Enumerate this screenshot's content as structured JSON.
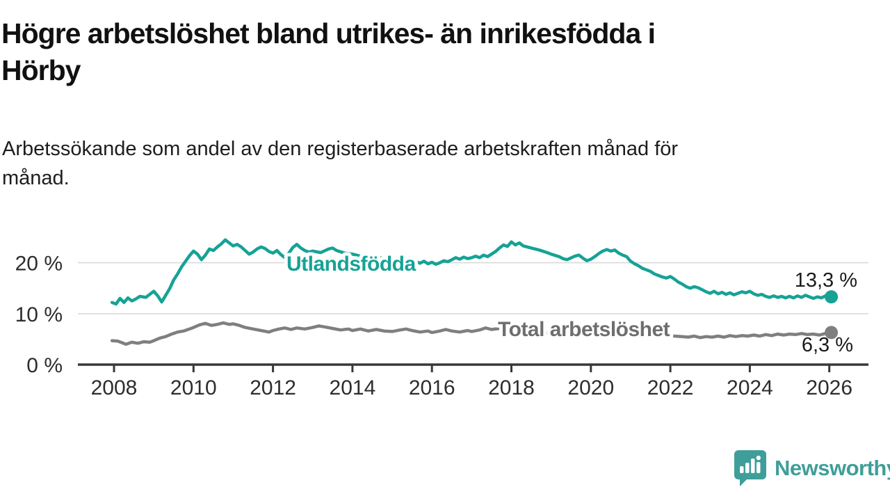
{
  "header": {
    "title_lines": [
      "Högre arbetslöshet bland utrikes- än inrikesfödda i",
      "Hörby"
    ],
    "subtitle_lines": [
      "Arbetssökande som andel av den registerbaserade arbetskraften månad för",
      "månad."
    ]
  },
  "footer": {
    "brand": "Newsworthy",
    "brand_color": "#3f9e99"
  },
  "chart_data": {
    "type": "line",
    "title": "Högre arbetslöshet bland utrikes- än inrikesfödda i Hörby",
    "subtitle": "Arbetssökande som andel av den registerbaserade arbetskraften månad för månad.",
    "xlabel": "",
    "ylabel": "",
    "xlim": [
      2007.9,
      2027.0
    ],
    "ylim": [
      0,
      27
    ],
    "grid": "horizontal",
    "legend_position": "inline-labels",
    "x_ticks": [
      2008,
      2010,
      2012,
      2014,
      2016,
      2018,
      2020,
      2022,
      2024,
      2026
    ],
    "y_ticks": [
      {
        "value": 0,
        "label": "0 %"
      },
      {
        "value": 10,
        "label": "10 %"
      },
      {
        "value": 20,
        "label": "20 %"
      }
    ],
    "colors": {
      "axis": "#383838",
      "grid": "#d9d9d9",
      "tick_text": "#2d2d2d"
    },
    "series": [
      {
        "name": "Utlandsfödda",
        "color": "#17a296",
        "end_label": "13,3 %",
        "end_value": 13.3,
        "points": [
          [
            2007.95,
            12.2
          ],
          [
            2008.05,
            11.9
          ],
          [
            2008.15,
            13.0
          ],
          [
            2008.25,
            12.2
          ],
          [
            2008.35,
            13.1
          ],
          [
            2008.45,
            12.5
          ],
          [
            2008.55,
            12.9
          ],
          [
            2008.65,
            13.4
          ],
          [
            2008.8,
            13.2
          ],
          [
            2008.9,
            13.8
          ],
          [
            2009.0,
            14.4
          ],
          [
            2009.1,
            13.5
          ],
          [
            2009.2,
            12.3
          ],
          [
            2009.3,
            13.6
          ],
          [
            2009.4,
            14.9
          ],
          [
            2009.5,
            16.6
          ],
          [
            2009.6,
            17.8
          ],
          [
            2009.7,
            19.2
          ],
          [
            2009.8,
            20.3
          ],
          [
            2009.9,
            21.4
          ],
          [
            2010.0,
            22.3
          ],
          [
            2010.1,
            21.7
          ],
          [
            2010.2,
            20.6
          ],
          [
            2010.3,
            21.5
          ],
          [
            2010.4,
            22.7
          ],
          [
            2010.5,
            22.4
          ],
          [
            2010.6,
            23.1
          ],
          [
            2010.7,
            23.7
          ],
          [
            2010.8,
            24.5
          ],
          [
            2010.9,
            23.9
          ],
          [
            2011.0,
            23.3
          ],
          [
            2011.1,
            23.6
          ],
          [
            2011.2,
            23.1
          ],
          [
            2011.3,
            22.4
          ],
          [
            2011.4,
            21.7
          ],
          [
            2011.5,
            22.1
          ],
          [
            2011.6,
            22.7
          ],
          [
            2011.7,
            23.1
          ],
          [
            2011.8,
            22.8
          ],
          [
            2011.9,
            22.2
          ],
          [
            2012.0,
            21.9
          ],
          [
            2012.1,
            22.4
          ],
          [
            2012.2,
            21.6
          ],
          [
            2012.3,
            21.0
          ],
          [
            2012.4,
            21.9
          ],
          [
            2012.5,
            23.0
          ],
          [
            2012.6,
            23.6
          ],
          [
            2012.7,
            22.9
          ],
          [
            2012.8,
            22.4
          ],
          [
            2012.9,
            22.1
          ],
          [
            2013.0,
            22.3
          ],
          [
            2013.2,
            22.0
          ],
          [
            2013.4,
            22.7
          ],
          [
            2013.5,
            22.9
          ],
          [
            2013.6,
            22.4
          ],
          [
            2013.8,
            21.9
          ],
          [
            2014.0,
            21.7
          ],
          [
            2014.2,
            21.3
          ],
          [
            2014.4,
            21.6
          ],
          [
            2014.6,
            21.1
          ],
          [
            2014.8,
            20.8
          ],
          [
            2015.0,
            20.6
          ],
          [
            2015.2,
            20.4
          ],
          [
            2015.4,
            20.7
          ],
          [
            2015.6,
            20.2
          ],
          [
            2015.7,
            19.9
          ],
          [
            2015.8,
            20.3
          ],
          [
            2015.9,
            19.8
          ],
          [
            2016.0,
            20.1
          ],
          [
            2016.1,
            19.7
          ],
          [
            2016.2,
            20.0
          ],
          [
            2016.3,
            20.4
          ],
          [
            2016.4,
            20.2
          ],
          [
            2016.5,
            20.6
          ],
          [
            2016.6,
            21.0
          ],
          [
            2016.7,
            20.7
          ],
          [
            2016.8,
            21.1
          ],
          [
            2016.9,
            20.8
          ],
          [
            2017.0,
            21.0
          ],
          [
            2017.1,
            21.3
          ],
          [
            2017.2,
            21.0
          ],
          [
            2017.3,
            21.5
          ],
          [
            2017.4,
            21.2
          ],
          [
            2017.5,
            21.7
          ],
          [
            2017.6,
            22.2
          ],
          [
            2017.7,
            22.9
          ],
          [
            2017.8,
            23.5
          ],
          [
            2017.9,
            23.2
          ],
          [
            2018.0,
            24.1
          ],
          [
            2018.1,
            23.5
          ],
          [
            2018.2,
            23.9
          ],
          [
            2018.3,
            23.3
          ],
          [
            2018.5,
            22.9
          ],
          [
            2018.7,
            22.5
          ],
          [
            2018.9,
            22.0
          ],
          [
            2019.0,
            21.7
          ],
          [
            2019.2,
            21.2
          ],
          [
            2019.3,
            20.8
          ],
          [
            2019.4,
            20.6
          ],
          [
            2019.6,
            21.3
          ],
          [
            2019.7,
            21.5
          ],
          [
            2019.8,
            20.9
          ],
          [
            2019.9,
            20.4
          ],
          [
            2020.0,
            20.7
          ],
          [
            2020.1,
            21.2
          ],
          [
            2020.2,
            21.8
          ],
          [
            2020.3,
            22.3
          ],
          [
            2020.4,
            22.6
          ],
          [
            2020.5,
            22.3
          ],
          [
            2020.6,
            22.5
          ],
          [
            2020.7,
            21.9
          ],
          [
            2020.8,
            21.5
          ],
          [
            2020.9,
            21.2
          ],
          [
            2021.0,
            20.3
          ],
          [
            2021.1,
            19.8
          ],
          [
            2021.2,
            19.4
          ],
          [
            2021.3,
            18.9
          ],
          [
            2021.4,
            18.6
          ],
          [
            2021.5,
            18.3
          ],
          [
            2021.6,
            17.8
          ],
          [
            2021.7,
            17.5
          ],
          [
            2021.8,
            17.2
          ],
          [
            2021.9,
            17.0
          ],
          [
            2022.0,
            17.3
          ],
          [
            2022.1,
            16.8
          ],
          [
            2022.2,
            16.2
          ],
          [
            2022.3,
            15.8
          ],
          [
            2022.4,
            15.3
          ],
          [
            2022.5,
            15.0
          ],
          [
            2022.6,
            15.3
          ],
          [
            2022.7,
            15.1
          ],
          [
            2022.8,
            14.7
          ],
          [
            2022.9,
            14.3
          ],
          [
            2023.0,
            14.0
          ],
          [
            2023.1,
            14.4
          ],
          [
            2023.2,
            13.9
          ],
          [
            2023.3,
            14.2
          ],
          [
            2023.4,
            13.8
          ],
          [
            2023.5,
            14.1
          ],
          [
            2023.6,
            13.7
          ],
          [
            2023.7,
            14.0
          ],
          [
            2023.8,
            14.3
          ],
          [
            2023.9,
            14.1
          ],
          [
            2024.0,
            14.4
          ],
          [
            2024.1,
            13.9
          ],
          [
            2024.2,
            13.6
          ],
          [
            2024.3,
            13.8
          ],
          [
            2024.4,
            13.4
          ],
          [
            2024.5,
            13.2
          ],
          [
            2024.6,
            13.5
          ],
          [
            2024.7,
            13.2
          ],
          [
            2024.8,
            13.4
          ],
          [
            2024.9,
            13.1
          ],
          [
            2025.0,
            13.4
          ],
          [
            2025.1,
            13.1
          ],
          [
            2025.2,
            13.5
          ],
          [
            2025.3,
            13.2
          ],
          [
            2025.4,
            13.6
          ],
          [
            2025.5,
            13.3
          ],
          [
            2025.6,
            13.0
          ],
          [
            2025.7,
            13.3
          ],
          [
            2025.8,
            13.1
          ],
          [
            2025.9,
            13.5
          ],
          [
            2026.05,
            13.3
          ]
        ]
      },
      {
        "name": "Total arbetslöshet",
        "color": "#7f7f7f",
        "label_color": "#6e6e6e",
        "end_label": "6,3 %",
        "end_value": 6.3,
        "points": [
          [
            2007.95,
            4.7
          ],
          [
            2008.1,
            4.6
          ],
          [
            2008.2,
            4.3
          ],
          [
            2008.3,
            4.0
          ],
          [
            2008.45,
            4.4
          ],
          [
            2008.6,
            4.2
          ],
          [
            2008.75,
            4.5
          ],
          [
            2008.9,
            4.4
          ],
          [
            2009.0,
            4.7
          ],
          [
            2009.15,
            5.2
          ],
          [
            2009.3,
            5.5
          ],
          [
            2009.45,
            6.0
          ],
          [
            2009.6,
            6.4
          ],
          [
            2009.75,
            6.6
          ],
          [
            2009.9,
            7.0
          ],
          [
            2010.0,
            7.3
          ],
          [
            2010.15,
            7.8
          ],
          [
            2010.3,
            8.1
          ],
          [
            2010.45,
            7.7
          ],
          [
            2010.6,
            7.9
          ],
          [
            2010.75,
            8.2
          ],
          [
            2010.9,
            7.9
          ],
          [
            2011.0,
            8.0
          ],
          [
            2011.15,
            7.7
          ],
          [
            2011.3,
            7.3
          ],
          [
            2011.5,
            7.0
          ],
          [
            2011.7,
            6.7
          ],
          [
            2011.9,
            6.4
          ],
          [
            2012.0,
            6.7
          ],
          [
            2012.15,
            7.0
          ],
          [
            2012.3,
            7.2
          ],
          [
            2012.45,
            6.9
          ],
          [
            2012.6,
            7.2
          ],
          [
            2012.8,
            7.0
          ],
          [
            2013.0,
            7.3
          ],
          [
            2013.15,
            7.6
          ],
          [
            2013.3,
            7.4
          ],
          [
            2013.5,
            7.1
          ],
          [
            2013.7,
            6.8
          ],
          [
            2013.9,
            7.0
          ],
          [
            2014.0,
            6.7
          ],
          [
            2014.2,
            7.0
          ],
          [
            2014.4,
            6.6
          ],
          [
            2014.6,
            6.9
          ],
          [
            2014.8,
            6.6
          ],
          [
            2015.0,
            6.5
          ],
          [
            2015.2,
            6.8
          ],
          [
            2015.35,
            7.0
          ],
          [
            2015.5,
            6.7
          ],
          [
            2015.7,
            6.4
          ],
          [
            2015.9,
            6.6
          ],
          [
            2016.0,
            6.3
          ],
          [
            2016.2,
            6.6
          ],
          [
            2016.35,
            6.9
          ],
          [
            2016.5,
            6.6
          ],
          [
            2016.7,
            6.4
          ],
          [
            2016.9,
            6.7
          ],
          [
            2017.0,
            6.5
          ],
          [
            2017.2,
            6.8
          ],
          [
            2017.35,
            7.2
          ],
          [
            2017.5,
            6.9
          ],
          [
            2017.7,
            7.1
          ],
          [
            2017.9,
            6.8
          ],
          [
            2018.2,
            6.6
          ],
          [
            2018.5,
            6.4
          ],
          [
            2018.8,
            6.2
          ],
          [
            2019.1,
            6.1
          ],
          [
            2019.4,
            6.2
          ],
          [
            2019.7,
            6.0
          ],
          [
            2020.0,
            6.4
          ],
          [
            2020.3,
            7.1
          ],
          [
            2020.6,
            7.3
          ],
          [
            2020.9,
            7.0
          ],
          [
            2021.2,
            6.6
          ],
          [
            2021.5,
            6.2
          ],
          [
            2021.8,
            5.9
          ],
          [
            2022.1,
            5.6
          ],
          [
            2022.3,
            5.5
          ],
          [
            2022.45,
            5.4
          ],
          [
            2022.6,
            5.6
          ],
          [
            2022.75,
            5.3
          ],
          [
            2022.9,
            5.5
          ],
          [
            2023.05,
            5.4
          ],
          [
            2023.2,
            5.6
          ],
          [
            2023.35,
            5.4
          ],
          [
            2023.5,
            5.7
          ],
          [
            2023.65,
            5.5
          ],
          [
            2023.8,
            5.7
          ],
          [
            2023.95,
            5.6
          ],
          [
            2024.1,
            5.8
          ],
          [
            2024.25,
            5.6
          ],
          [
            2024.4,
            5.9
          ],
          [
            2024.55,
            5.7
          ],
          [
            2024.7,
            6.0
          ],
          [
            2024.85,
            5.8
          ],
          [
            2025.0,
            6.0
          ],
          [
            2025.15,
            5.9
          ],
          [
            2025.3,
            6.1
          ],
          [
            2025.45,
            5.9
          ],
          [
            2025.6,
            6.0
          ],
          [
            2025.75,
            5.8
          ],
          [
            2025.9,
            6.1
          ],
          [
            2026.05,
            6.3
          ]
        ]
      }
    ]
  }
}
